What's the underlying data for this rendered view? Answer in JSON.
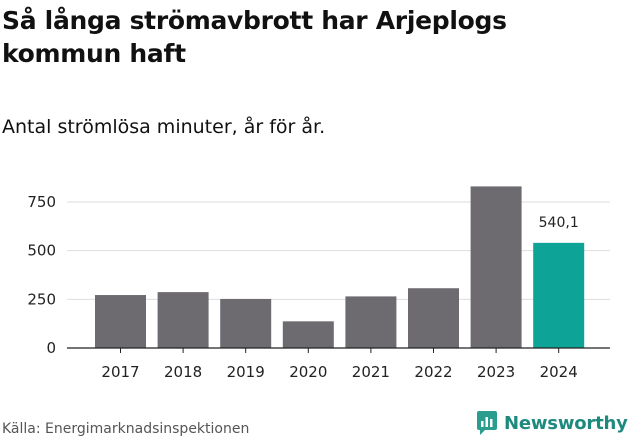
{
  "title": "Så långa strömavbrott har Arjeplogs kommun haft",
  "subtitle": "Antal strömlösa minuter, år för år.",
  "source": "Källa: Energimarknadsinspektionen",
  "brand": {
    "name": "Newsworthy",
    "icon": "newsworthy-logo-icon",
    "color": "#2a9d8f"
  },
  "colors": {
    "bar": "#6d6b70",
    "highlight": "#0ea397",
    "grid": "#dddddd",
    "axis": "#222222"
  },
  "chart_data": {
    "type": "bar",
    "title": "Så långa strömavbrott har Arjeplogs kommun haft",
    "subtitle": "Antal strömlösa minuter, år för år.",
    "xlabel": "",
    "ylabel": "",
    "categories": [
      "2017",
      "2018",
      "2019",
      "2020",
      "2021",
      "2022",
      "2023",
      "2024"
    ],
    "values": [
      272,
      287,
      252,
      137,
      265,
      307,
      830,
      540.1
    ],
    "highlight_index": 7,
    "data_labels": [
      {
        "index": 7,
        "text": "540,1"
      }
    ],
    "yticks": [
      0,
      250,
      500,
      750
    ],
    "ytick_labels": [
      "0",
      "250",
      "500",
      "750"
    ],
    "ylim": [
      0,
      860
    ],
    "grid": true,
    "legend": "none"
  }
}
